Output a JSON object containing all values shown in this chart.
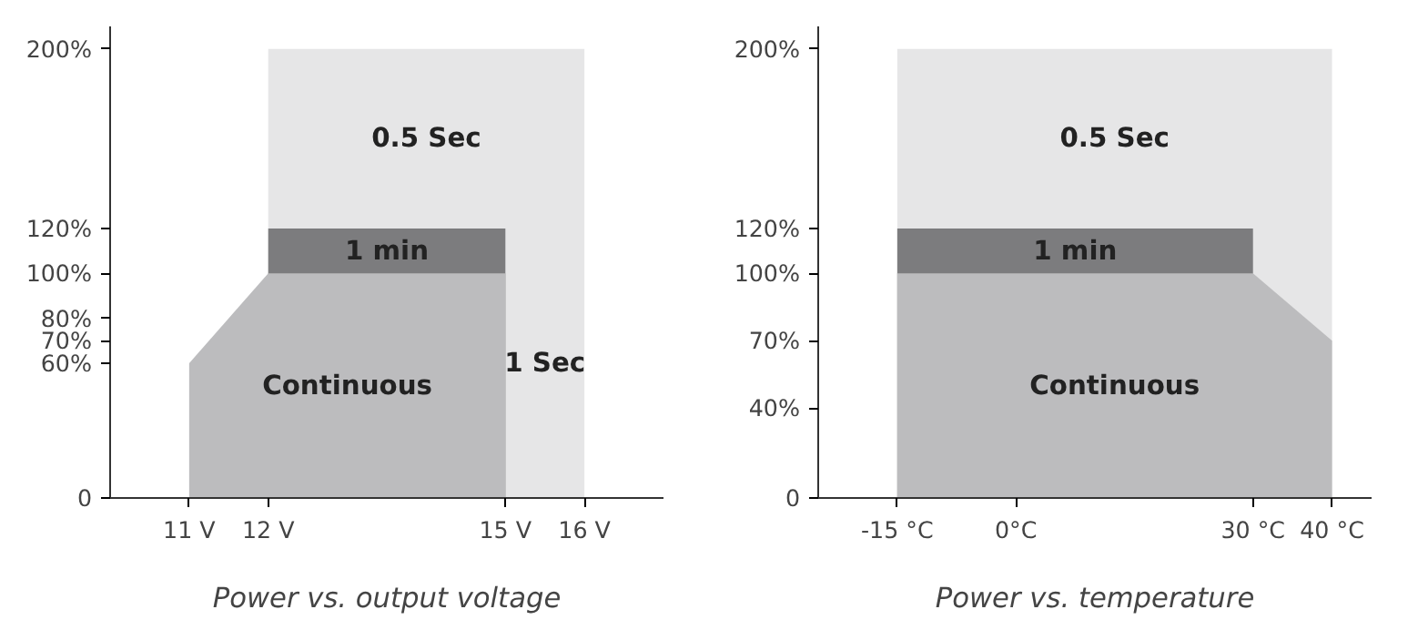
{
  "chart_data": [
    {
      "type": "area",
      "xlabel": "Power vs. output voltage",
      "xlim": [
        10,
        17
      ],
      "ylim": [
        0,
        210
      ],
      "grid": false,
      "xticks": [
        {
          "value": 11,
          "label": "11 V"
        },
        {
          "value": 12,
          "label": "12 V"
        },
        {
          "value": 15,
          "label": "15 V"
        },
        {
          "value": 16,
          "label": "16 V"
        }
      ],
      "yticks": [
        {
          "value": 0,
          "label": "0"
        },
        {
          "value": 60,
          "label": "60%"
        },
        {
          "value": 70,
          "label": "70%"
        },
        {
          "value": 80,
          "label": "80%"
        },
        {
          "value": 100,
          "label": "100%"
        },
        {
          "value": 120,
          "label": "120%"
        },
        {
          "value": 200,
          "label": "200%"
        }
      ],
      "series": [
        {
          "name": "0.5 Sec",
          "color": "#e6e6e7",
          "x": [
            12,
            16
          ],
          "values": [
            200,
            200
          ]
        },
        {
          "name": "1 min",
          "color": "#7c7c7e",
          "x": [
            12,
            15
          ],
          "values": [
            120,
            120
          ]
        },
        {
          "name": "Continuous",
          "color": "#bcbcbe",
          "x": [
            11,
            12,
            15
          ],
          "values": [
            60,
            100,
            100
          ]
        }
      ],
      "annotations": [
        "1 Sec"
      ]
    },
    {
      "type": "area",
      "xlabel": "Power vs. temperature",
      "xlim": [
        -25,
        45
      ],
      "ylim": [
        0,
        210
      ],
      "grid": false,
      "xticks": [
        {
          "value": -15,
          "label": "-15 °C"
        },
        {
          "value": 0,
          "label": "0°C"
        },
        {
          "value": 30,
          "label": "30 °C"
        },
        {
          "value": 40,
          "label": "40 °C"
        }
      ],
      "yticks": [
        {
          "value": 0,
          "label": "0"
        },
        {
          "value": 40,
          "label": "40%"
        },
        {
          "value": 70,
          "label": "70%"
        },
        {
          "value": 100,
          "label": "100%"
        },
        {
          "value": 120,
          "label": "120%"
        },
        {
          "value": 200,
          "label": "200%"
        }
      ],
      "series": [
        {
          "name": "0.5 Sec",
          "color": "#e6e6e7",
          "x": [
            -15,
            40
          ],
          "values": [
            200,
            200
          ]
        },
        {
          "name": "1 min",
          "color": "#7c7c7e",
          "x": [
            -15,
            30
          ],
          "values": [
            120,
            120
          ]
        },
        {
          "name": "Continuous",
          "color": "#bcbcbe",
          "x": [
            -15,
            30,
            40
          ],
          "values": [
            100,
            100,
            70
          ]
        }
      ]
    }
  ]
}
